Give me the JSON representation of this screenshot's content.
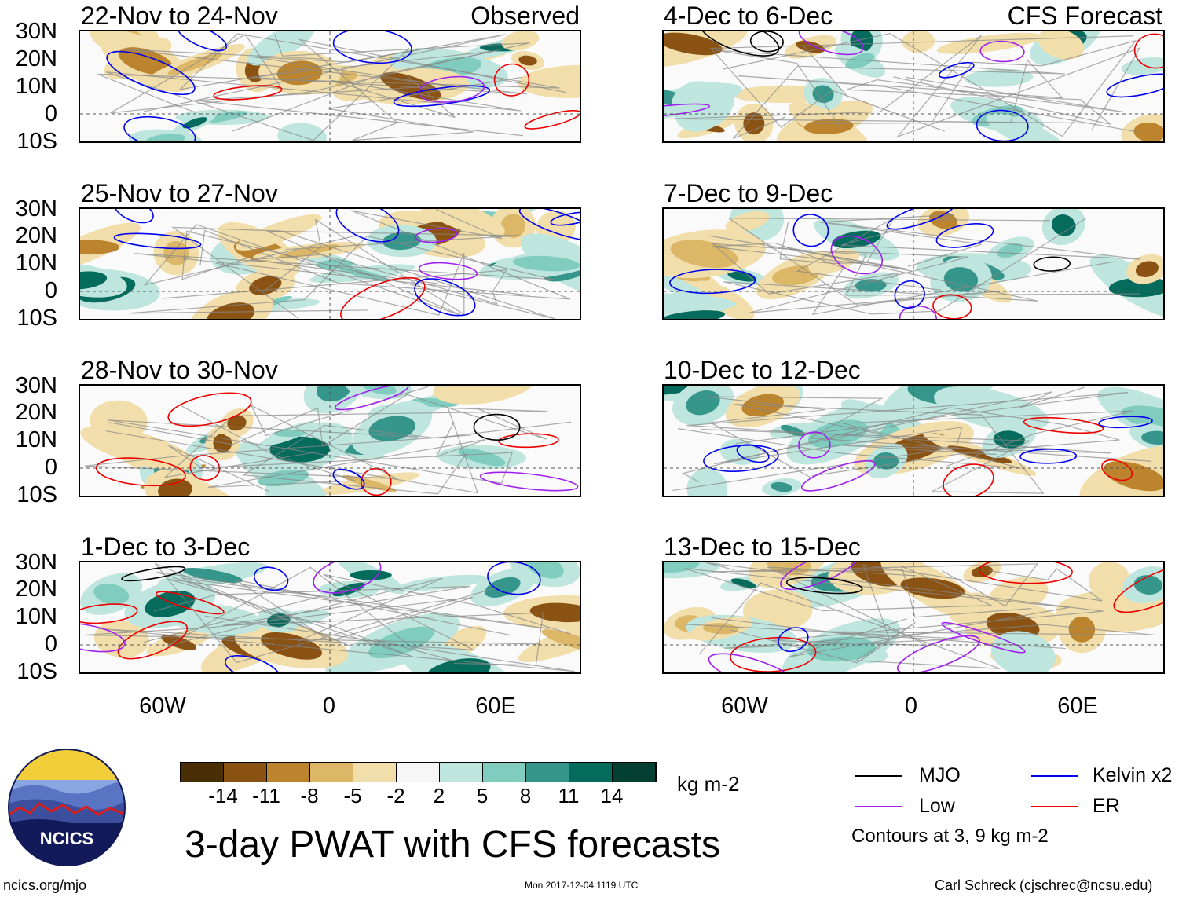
{
  "header": {
    "observed_tag": "Observed",
    "forecast_tag": "CFS Forecast"
  },
  "panels": [
    {
      "period": "22-Nov to 24-Nov",
      "group": "observed"
    },
    {
      "period": "25-Nov to 27-Nov",
      "group": "observed"
    },
    {
      "period": "28-Nov to 30-Nov",
      "group": "observed"
    },
    {
      "period": "1-Dec to 3-Dec",
      "group": "observed"
    },
    {
      "period": "4-Dec to 6-Dec",
      "group": "forecast"
    },
    {
      "period": "7-Dec to 9-Dec",
      "group": "forecast"
    },
    {
      "period": "10-Dec to 12-Dec",
      "group": "forecast"
    },
    {
      "period": "13-Dec to 15-Dec",
      "group": "forecast"
    }
  ],
  "axes": {
    "lat_labels": [
      "30N",
      "20N",
      "10N",
      "0",
      "10S"
    ],
    "lon_labels": [
      "60W",
      "0",
      "60E"
    ]
  },
  "colorbar": {
    "unit": "kg m-2",
    "ticks": [
      "-14",
      "-11",
      "-8",
      "-5",
      "-2",
      "2",
      "5",
      "8",
      "11",
      "14"
    ],
    "colors": [
      "#4a2e06",
      "#8b5313",
      "#bd842e",
      "#dcb767",
      "#f1deaa",
      "#f6f6f6",
      "#bfe6de",
      "#80cdc0",
      "#36968c",
      "#046b5d",
      "#033f33"
    ]
  },
  "legend": {
    "items": [
      {
        "label": "MJO",
        "color": "#000000"
      },
      {
        "label": "Kelvin x2",
        "color": "#0000ee"
      },
      {
        "label": "Low",
        "color": "#a020f0"
      },
      {
        "label": "ER",
        "color": "#ee0000"
      }
    ],
    "note": "Contours at 3, 9 kg m-2"
  },
  "logo": {
    "text": "NCICS"
  },
  "footer": {
    "title": "3-day PWAT with CFS forecasts",
    "url": "ncics.org/mjo",
    "timestamp": "Mon 2017-12-04 1119 UTC",
    "credit": "Carl Schreck (cjschrec@ncsu.edu)"
  }
}
